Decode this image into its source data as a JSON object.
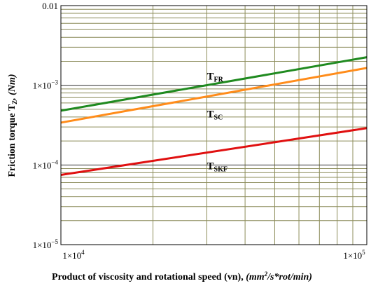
{
  "chart_data": {
    "type": "line",
    "x_scale": "log",
    "y_scale": "log",
    "xlim": [
      10000,
      100000
    ],
    "ylim": [
      1e-05,
      0.01
    ],
    "grid": true,
    "x_ticks": [
      {
        "base": "1×10",
        "exp": "4"
      },
      {
        "base": "1×10",
        "exp": "5"
      }
    ],
    "y_ticks": [
      {
        "value": 1e-05,
        "base": "1×10",
        "exp": "−5"
      },
      {
        "value": 0.0001,
        "base": "1×10",
        "exp": "−4"
      },
      {
        "value": 0.001,
        "base": "1×10",
        "exp": "−3"
      },
      {
        "value": 0.01,
        "base": "0.01",
        "exp": ""
      }
    ],
    "xlabel": {
      "main": "Product of viscosity and rotational speed (vn), ",
      "unit_open": "(mm",
      "unit_sup": "2",
      "unit_rest": "/s*rot/min)"
    },
    "ylabel": {
      "main": "Friction torque T",
      "sub": "Z",
      "unit": ", (Nm)"
    },
    "series": [
      {
        "label": "T",
        "sub": "FR",
        "color": "#1f8a1f",
        "x": [
          10000,
          100000
        ],
        "y": [
          0.00048,
          0.00225
        ]
      },
      {
        "label": "T",
        "sub": "SC",
        "color": "#ff8c1a",
        "x": [
          10000,
          100000
        ],
        "y": [
          0.00034,
          0.00165
        ]
      },
      {
        "label": "T",
        "sub": "SKF",
        "color": "#e01010",
        "x": [
          10000,
          100000
        ],
        "y": [
          7.5e-05,
          0.00029
        ]
      }
    ]
  }
}
